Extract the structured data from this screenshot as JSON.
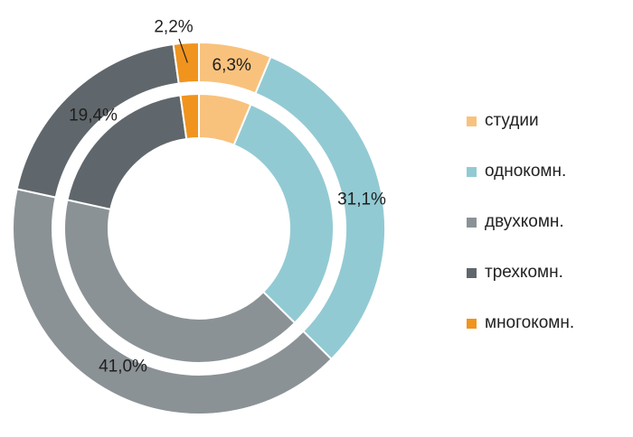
{
  "chart_data": {
    "type": "pie",
    "style": "double-ring donut",
    "legend_position": "right",
    "categories": [
      "студии",
      "однокомн.",
      "двухкомн.",
      "трехкомн.",
      "многокомн."
    ],
    "colors": [
      "#f8c27d",
      "#92cad3",
      "#8b9296",
      "#60676c",
      "#f0941e"
    ],
    "series": [
      {
        "ring": "outer",
        "values": [
          6.3,
          31.1,
          41.0,
          19.4,
          2.2
        ]
      },
      {
        "ring": "inner",
        "values": [
          6.3,
          31.1,
          41.0,
          19.4,
          2.2
        ]
      }
    ],
    "data_labels": [
      {
        "category": "студии",
        "text": "6,3%"
      },
      {
        "category": "однокомн.",
        "text": "31,1%"
      },
      {
        "category": "двухкомн.",
        "text": "41,0%"
      },
      {
        "category": "трехкомн.",
        "text": "19,4%"
      },
      {
        "category": "многокомн.",
        "text": "2,2%"
      }
    ]
  },
  "legend": {
    "items": [
      {
        "label": "студии",
        "color": "#f8c27d"
      },
      {
        "label": "однокомн.",
        "color": "#92cad3"
      },
      {
        "label": "двухкомн.",
        "color": "#8b9296"
      },
      {
        "label": "трехкомн.",
        "color": "#60676c"
      },
      {
        "label": "многокомн.",
        "color": "#f0941e"
      }
    ]
  }
}
